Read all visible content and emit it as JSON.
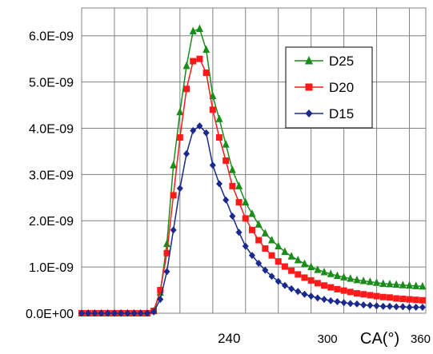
{
  "chart_data": {
    "type": "line",
    "title": "",
    "xlabel": "CA(°)",
    "ylabel": "",
    "xlim": [
      150,
      360
    ],
    "ylim": [
      0,
      6.6e-09
    ],
    "grid": true,
    "x_grid_step": 20,
    "y_grid_step": 1e-09,
    "legend_position": "top-right",
    "y_tick_values": [
      0,
      1e-09,
      2e-09,
      3e-09,
      4e-09,
      5e-09,
      6e-09
    ],
    "y_tick_labels": [
      "0.0E+00",
      "1.0E-09",
      "2.0E-09",
      "3.0E-09",
      "4.0E-09",
      "5.0E-09",
      "6.0E-09"
    ],
    "x_ticks": [
      {
        "value": 240,
        "label": "240",
        "style": "large"
      },
      {
        "value": 300,
        "label": "300",
        "style": "small"
      },
      {
        "value": 360,
        "label": "360",
        "style": "small"
      }
    ],
    "x": [
      150,
      154,
      158,
      162,
      166,
      170,
      174,
      178,
      182,
      186,
      190,
      194,
      198,
      202,
      206,
      210,
      214,
      218,
      222,
      226,
      230,
      234,
      238,
      242,
      246,
      250,
      254,
      258,
      262,
      266,
      270,
      274,
      278,
      282,
      286,
      290,
      294,
      298,
      302,
      306,
      310,
      314,
      318,
      322,
      326,
      330,
      334,
      338,
      342,
      346,
      350,
      354,
      358
    ],
    "series": [
      {
        "name": "D25",
        "color": "#1a8c1a",
        "marker": "triangle",
        "values": [
          0,
          0,
          0,
          0,
          0,
          0,
          0,
          0,
          0,
          0,
          0,
          5e-11,
          4.5e-10,
          1.5e-09,
          3.2e-09,
          4.35e-09,
          5.35e-09,
          6.1e-09,
          6.15e-09,
          5.7e-09,
          4.7e-09,
          4.2e-09,
          3.65e-09,
          3.1e-09,
          2.75e-09,
          2.4e-09,
          2.15e-09,
          1.92e-09,
          1.73e-09,
          1.58e-09,
          1.45e-09,
          1.33e-09,
          1.23e-09,
          1.15e-09,
          1.07e-09,
          1e-09,
          9.4e-10,
          8.9e-10,
          8.5e-10,
          8.1e-10,
          7.8e-10,
          7.5e-10,
          7.2e-10,
          7e-10,
          6.8e-10,
          6.6e-10,
          6.4e-10,
          6.3e-10,
          6.2e-10,
          6.1e-10,
          6e-10,
          5.9e-10,
          5.8e-10
        ]
      },
      {
        "name": "D20",
        "color": "#ff1a1a",
        "marker": "square",
        "values": [
          0,
          0,
          0,
          0,
          0,
          0,
          0,
          0,
          0,
          0,
          0,
          5e-11,
          5e-10,
          1.3e-09,
          2.55e-09,
          3.8e-09,
          4.85e-09,
          5.45e-09,
          5.5e-09,
          5.2e-09,
          4.4e-09,
          3.8e-09,
          3.3e-09,
          2.75e-09,
          2.4e-09,
          2.05e-09,
          1.8e-09,
          1.58e-09,
          1.4e-09,
          1.25e-09,
          1.12e-09,
          1.01e-09,
          9.2e-10,
          8.4e-10,
          7.7e-10,
          7.1e-10,
          6.5e-10,
          6e-10,
          5.6e-10,
          5.2e-10,
          4.9e-10,
          4.6e-10,
          4.3e-10,
          4.1e-10,
          3.9e-10,
          3.7e-10,
          3.5e-10,
          3.4e-10,
          3.2e-10,
          3.1e-10,
          3e-10,
          2.9e-10,
          2.8e-10
        ]
      },
      {
        "name": "D15",
        "color": "#1a2a8c",
        "marker": "diamond",
        "values": [
          0,
          0,
          0,
          0,
          0,
          0,
          0,
          0,
          0,
          0,
          0,
          3e-11,
          3e-10,
          9e-10,
          1.8e-09,
          2.7e-09,
          3.45e-09,
          3.95e-09,
          4.05e-09,
          3.9e-09,
          3.2e-09,
          2.8e-09,
          2.45e-09,
          2.1e-09,
          1.75e-09,
          1.45e-09,
          1.25e-09,
          1.08e-09,
          9.3e-10,
          8e-10,
          6.9e-10,
          6e-10,
          5.3e-10,
          4.7e-10,
          4.1e-10,
          3.7e-10,
          3.3e-10,
          3e-10,
          2.7e-10,
          2.5e-10,
          2.3e-10,
          2.1e-10,
          2e-10,
          1.8e-10,
          1.7e-10,
          1.6e-10,
          1.5e-10,
          1.5e-10,
          1.4e-10,
          1.4e-10,
          1.3e-10,
          1.3e-10,
          1.3e-10
        ]
      }
    ]
  }
}
